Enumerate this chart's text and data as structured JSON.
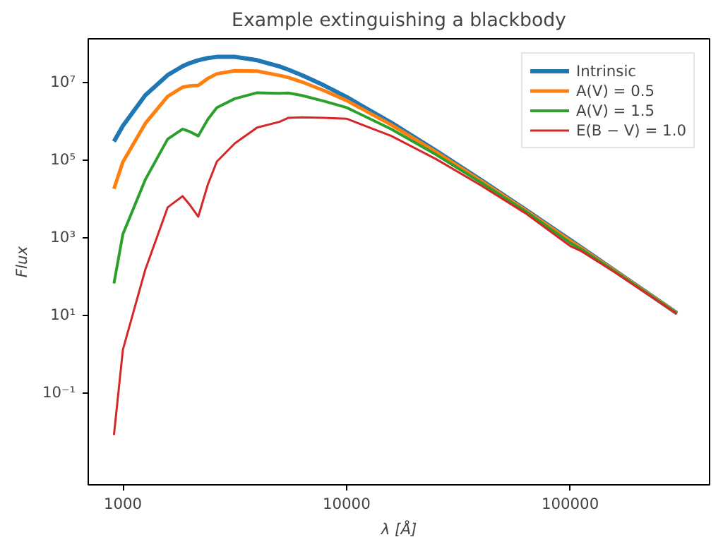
{
  "chart_data": {
    "type": "line",
    "title": "Example extinguishing a blackbody",
    "xlabel": "λ [Å]",
    "ylabel": "Flux",
    "x": [
      912,
      1000,
      1259,
      1585,
      1849,
      1995,
      2173,
      2399,
      2630,
      3162,
      3981,
      5012,
      5495,
      6310,
      7943,
      10000,
      15849,
      25119,
      39811,
      63096,
      100000,
      112202,
      158489,
      300000
    ],
    "series": [
      {
        "name": "Intrinsic",
        "color": "#1f77b4",
        "values": [
          295000.0,
          746000.0,
          4560000.0,
          15100000.0,
          25600000.0,
          30900000.0,
          36500000.0,
          41500000.0,
          44500000.0,
          44800000.0,
          36600000.0,
          25200000.0,
          20800000.0,
          15100000.0,
          8180000.0,
          4120000.0,
          895000.0,
          171000.0,
          30400.0,
          5180.0,
          855,
          545,
          139,
          11.1
        ]
      },
      {
        "name": "A(V) = 0.5",
        "color": "#ff7f0e",
        "values": [
          17800.0,
          87700.0,
          859000.0,
          4270000.0,
          7380000.0,
          7940000.0,
          8170000.0,
          12400000.0,
          16300000.0,
          19500000.0,
          19200000.0,
          14800000.0,
          13100000.0,
          10100000.0,
          6000000.0,
          3350000.0,
          789000.0,
          158000.0,
          28800.0,
          5000.0,
          807,
          526,
          137,
          11.1
        ]
      },
      {
        "name": "A(V) = 1.5",
        "color": "#2ca02c",
        "values": [
          64.6,
          1210.0,
          30500.0,
          339000.0,
          614000.0,
          525000.0,
          409000.0,
          1100000.0,
          2200000.0,
          3720000.0,
          5300000.0,
          5140000.0,
          5220000.0,
          4510000.0,
          3220000.0,
          2210000.0,
          612000.0,
          135000.0,
          26000.0,
          4670.0,
          719,
          491,
          132,
          10.9
        ]
      },
      {
        "name": "E(B − V) = 1.0",
        "color": "#d62728",
        "values": [
          0.00805,
          1.28,
          146,
          5890.0,
          11500.0,
          6790.0,
          3400.0,
          23100.0,
          89300.0,
          262000.0,
          673000.0,
          944000.0,
          1200000.0,
          1240000.0,
          1190000.0,
          1140000.0,
          408000.0,
          104000.0,
          22000.0,
          4180.0,
          598,
          440,
          125,
          10.7
        ]
      }
    ],
    "log": "xy",
    "xlim": [
      700,
      420000
    ],
    "ylim": [
      0.00042,
      130000000.0
    ],
    "xticks": [
      1000,
      10000,
      100000
    ],
    "yticks": [
      {
        "value": 0.1,
        "label": "10⁻¹"
      },
      {
        "value": 10,
        "label": "10¹"
      },
      {
        "value": 1000,
        "label": "10³"
      },
      {
        "value": 100000,
        "label": "10⁵"
      },
      {
        "value": 10000000,
        "label": "10⁷"
      }
    ],
    "grid": false,
    "legend": "top right",
    "line_style": "solid",
    "marker": "none"
  }
}
